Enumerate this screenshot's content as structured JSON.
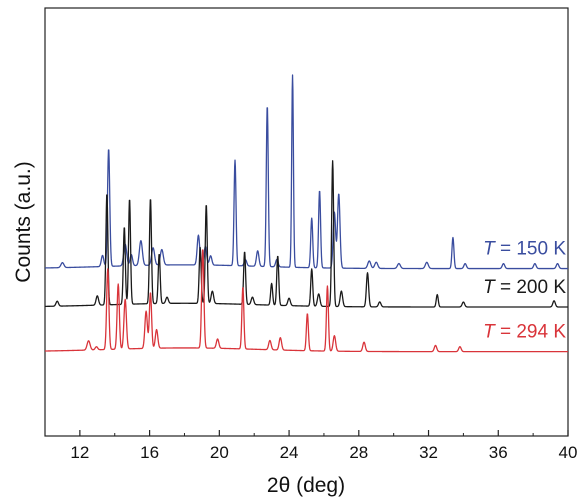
{
  "chart_data": {
    "type": "line",
    "xlabel": "2θ (deg)",
    "ylabel": "Counts (a.u.)",
    "xlim": [
      10,
      40
    ],
    "x_ticks": [
      12,
      16,
      20,
      24,
      28,
      32,
      36,
      40
    ],
    "x_tick_labels": [
      "12",
      "16",
      "20",
      "24",
      "28",
      "32",
      "36",
      "40"
    ],
    "grid": false,
    "legend": "inline labels at right end of each trace",
    "series": [
      {
        "name": "T = 150 K",
        "label_var": "T",
        "label_rest": " = 150 K",
        "color": "#3a4d9f",
        "baseline": 0.62,
        "peaks": [
          [
            11.0,
            0.08,
            0.12
          ],
          [
            13.3,
            0.18,
            0.1
          ],
          [
            13.65,
            1.9,
            0.09
          ],
          [
            14.6,
            0.35,
            0.12
          ],
          [
            14.95,
            0.18,
            0.1
          ],
          [
            15.5,
            0.4,
            0.12
          ],
          [
            16.2,
            0.28,
            0.12
          ],
          [
            16.7,
            0.25,
            0.12
          ],
          [
            18.8,
            0.48,
            0.1
          ],
          [
            19.2,
            0.3,
            0.1
          ],
          [
            19.5,
            0.15,
            0.1
          ],
          [
            20.9,
            1.7,
            0.08
          ],
          [
            21.5,
            0.1,
            0.1
          ],
          [
            22.2,
            0.25,
            0.1
          ],
          [
            22.75,
            2.6,
            0.08
          ],
          [
            23.3,
            0.12,
            0.1
          ],
          [
            24.2,
            3.1,
            0.07
          ],
          [
            25.3,
            0.8,
            0.08
          ],
          [
            25.75,
            1.25,
            0.08
          ],
          [
            26.6,
            0.9,
            0.1
          ],
          [
            26.85,
            1.2,
            0.1
          ],
          [
            28.6,
            0.12,
            0.12
          ],
          [
            29.0,
            0.1,
            0.12
          ],
          [
            30.3,
            0.08,
            0.12
          ],
          [
            31.9,
            0.1,
            0.12
          ],
          [
            33.4,
            0.5,
            0.08
          ],
          [
            34.1,
            0.08,
            0.1
          ],
          [
            36.3,
            0.08,
            0.1
          ],
          [
            38.1,
            0.08,
            0.1
          ],
          [
            39.4,
            0.08,
            0.1
          ]
        ]
      },
      {
        "name": "T = 200 K",
        "label_var": "T",
        "label_rest": " = 200 K",
        "color": "#1a1a1a",
        "baseline": 0.0,
        "peaks": [
          [
            10.7,
            0.08,
            0.1
          ],
          [
            13.0,
            0.15,
            0.1
          ],
          [
            13.55,
            1.8,
            0.08
          ],
          [
            14.55,
            1.25,
            0.08
          ],
          [
            14.85,
            1.7,
            0.08
          ],
          [
            16.05,
            1.7,
            0.08
          ],
          [
            16.55,
            0.8,
            0.08
          ],
          [
            17.0,
            0.1,
            0.1
          ],
          [
            18.9,
            0.9,
            0.08
          ],
          [
            19.25,
            1.6,
            0.08
          ],
          [
            19.6,
            0.2,
            0.1
          ],
          [
            21.45,
            0.85,
            0.08
          ],
          [
            21.9,
            0.12,
            0.1
          ],
          [
            23.0,
            0.35,
            0.08
          ],
          [
            23.35,
            0.8,
            0.08
          ],
          [
            24.0,
            0.12,
            0.1
          ],
          [
            25.3,
            0.6,
            0.08
          ],
          [
            25.7,
            0.2,
            0.1
          ],
          [
            26.5,
            2.35,
            0.08
          ],
          [
            27.0,
            0.25,
            0.1
          ],
          [
            28.5,
            0.55,
            0.09
          ],
          [
            29.2,
            0.08,
            0.1
          ],
          [
            32.5,
            0.2,
            0.08
          ],
          [
            34.0,
            0.08,
            0.1
          ],
          [
            39.2,
            0.1,
            0.1
          ]
        ]
      },
      {
        "name": "T = 294 K",
        "label_var": "T",
        "label_rest": " = 294 K",
        "color": "#d9343a",
        "baseline": -0.72,
        "peaks": [
          [
            12.5,
            0.15,
            0.12
          ],
          [
            12.95,
            0.05,
            0.1
          ],
          [
            13.6,
            1.3,
            0.09
          ],
          [
            14.2,
            1.05,
            0.09
          ],
          [
            14.6,
            0.8,
            0.1
          ],
          [
            15.8,
            0.6,
            0.1
          ],
          [
            16.05,
            0.9,
            0.09
          ],
          [
            16.4,
            0.3,
            0.1
          ],
          [
            19.05,
            1.6,
            0.09
          ],
          [
            19.9,
            0.15,
            0.1
          ],
          [
            21.35,
            1.0,
            0.08
          ],
          [
            22.9,
            0.15,
            0.1
          ],
          [
            23.5,
            0.2,
            0.1
          ],
          [
            25.05,
            0.6,
            0.08
          ],
          [
            26.2,
            1.05,
            0.08
          ],
          [
            26.6,
            0.25,
            0.1
          ],
          [
            28.3,
            0.15,
            0.1
          ],
          [
            32.4,
            0.1,
            0.1
          ],
          [
            33.8,
            0.08,
            0.1
          ]
        ]
      }
    ]
  }
}
